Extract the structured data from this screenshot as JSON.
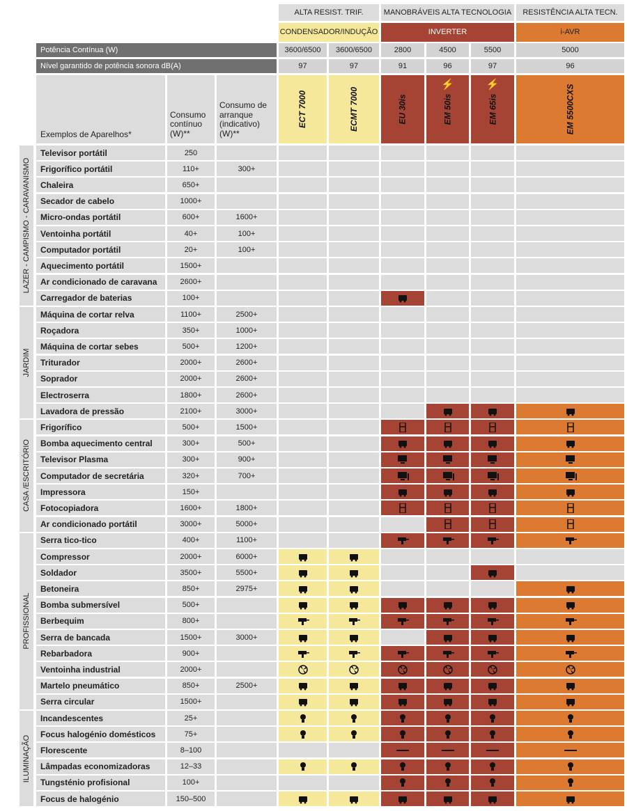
{
  "groups": [
    {
      "label": "ALTA RESIST. TRIF."
    },
    {
      "label": "MANOBRÁVEIS ALTA TECNOLOGIA"
    },
    {
      "label": "RESISTÊNCIA ALTA TECN."
    }
  ],
  "subgroups": [
    {
      "label": "CONDENSADOR/INDUÇÃO"
    },
    {
      "label": "INVERTER"
    },
    {
      "label": "i-AVR"
    }
  ],
  "power_row": {
    "label": "Potência Contínua (W)",
    "values": [
      "3600/6500",
      "3600/6500",
      "2800",
      "4500",
      "5500",
      "5000"
    ]
  },
  "sound_row": {
    "label": "Nível garantido de potência sonora dB(A)",
    "values": [
      "97",
      "97",
      "91",
      "96",
      "97",
      "96"
    ]
  },
  "column_headers": {
    "appliances": "Exemplos de Aparelhos*",
    "continuous": "Consumo contínuo (W)**",
    "startup": "Consumo de arranque (indicativo) (W)**"
  },
  "models": [
    "ECT 7000",
    "ECMT 7000",
    "EU 30is",
    "EM 50is",
    "EM 65is",
    "EM 5500CXS"
  ],
  "sections": [
    {
      "label": "LAZER - CAMPISMO - CARAVANISMO"
    },
    {
      "label": "JARDIM"
    },
    {
      "label": "CASA /ESCRITÓRIO"
    },
    {
      "label": "PROFISSIONAL"
    },
    {
      "label": "ILUMINAÇÃO"
    }
  ],
  "rows": [
    {
      "name": "Televisor portátil",
      "cont": "250",
      "start": "",
      "icon": "",
      "cols": "000000"
    },
    {
      "name": "Frigorífico portátil",
      "cont": "110+",
      "start": "300+",
      "icon": "",
      "cols": "000000"
    },
    {
      "name": "Chaleira",
      "cont": "650+",
      "start": "",
      "icon": "",
      "cols": "000000"
    },
    {
      "name": "Secador de cabelo",
      "cont": "1000+",
      "start": "",
      "icon": "",
      "cols": "000000"
    },
    {
      "name": "Micro-ondas portátil",
      "cont": "600+",
      "start": "1600+",
      "icon": "",
      "cols": "000000"
    },
    {
      "name": "Ventoinha portátil",
      "cont": "40+",
      "start": "100+",
      "icon": "",
      "cols": "000000"
    },
    {
      "name": "Computador portátil",
      "cont": "20+",
      "start": "100+",
      "icon": "",
      "cols": "000000"
    },
    {
      "name": "Aquecimento portátil",
      "cont": "1500+",
      "start": "",
      "icon": "",
      "cols": "000000"
    },
    {
      "name": "Ar condicionado de caravana",
      "cont": "2600+",
      "start": "",
      "icon": "",
      "cols": "000000"
    },
    {
      "name": "Carregador de baterias",
      "cont": "100+",
      "start": "",
      "icon": "battery-charger-icon",
      "cols": "001000"
    },
    {
      "name": "Máquina de cortar relva",
      "cont": "1100+",
      "start": "2500+",
      "icon": "",
      "cols": "000000"
    },
    {
      "name": "Roçadora",
      "cont": "350+",
      "start": "1000+",
      "icon": "",
      "cols": "000000"
    },
    {
      "name": "Máquina de cortar sebes",
      "cont": "500+",
      "start": "1200+",
      "icon": "",
      "cols": "000000"
    },
    {
      "name": "Triturador",
      "cont": "2000+",
      "start": "2600+",
      "icon": "",
      "cols": "000000"
    },
    {
      "name": "Soprador",
      "cont": "2000+",
      "start": "2600+",
      "icon": "",
      "cols": "000000"
    },
    {
      "name": "Electroserra",
      "cont": "1800+",
      "start": "2600+",
      "icon": "",
      "cols": "000000"
    },
    {
      "name": "Lavadora de pressão",
      "cont": "2100+",
      "start": "3000+",
      "icon": "pressure-washer-icon",
      "cols": "000111"
    },
    {
      "name": "Frigorífico",
      "cont": "500+",
      "start": "1500+",
      "icon": "fridge-icon",
      "cols": "001111"
    },
    {
      "name": "Bomba aquecimento central",
      "cont": "300+",
      "start": "500+",
      "icon": "pump-icon",
      "cols": "001111"
    },
    {
      "name": "Televisor Plasma",
      "cont": "300+",
      "start": "900+",
      "icon": "tv-icon",
      "cols": "001111"
    },
    {
      "name": "Computador de secretária",
      "cont": "320+",
      "start": "700+",
      "icon": "desktop-computer-icon",
      "cols": "001111"
    },
    {
      "name": "Impressora",
      "cont": "150+",
      "start": "",
      "icon": "printer-icon",
      "cols": "001111"
    },
    {
      "name": "Fotocopiadora",
      "cont": "1600+",
      "start": "1800+",
      "icon": "photocopier-icon",
      "cols": "001111"
    },
    {
      "name": "Ar condicionado portátil",
      "cont": "3000+",
      "start": "5000+",
      "icon": "air-conditioner-icon",
      "cols": "000111"
    },
    {
      "name": "Serra tico-tico",
      "cont": "400+",
      "start": "1100+",
      "icon": "jigsaw-icon",
      "cols": "001111"
    },
    {
      "name": "Compressor",
      "cont": "2000+",
      "start": "6000+",
      "icon": "compressor-icon",
      "cols": "110000"
    },
    {
      "name": "Soldador",
      "cont": "3500+",
      "start": "5500+",
      "icon": "welder-icon",
      "cols": "110010"
    },
    {
      "name": "Betoneira",
      "cont": "850+",
      "start": "2975+",
      "icon": "concrete-mixer-icon",
      "cols": "110001"
    },
    {
      "name": "Bomba submersível",
      "cont": "500+",
      "start": "",
      "icon": "submersible-pump-icon",
      "cols": "111111"
    },
    {
      "name": "Berbequim",
      "cont": "800+",
      "start": "",
      "icon": "drill-icon",
      "cols": "111111"
    },
    {
      "name": "Serra de bancada",
      "cont": "1500+",
      "start": "3000+",
      "icon": "table-saw-icon",
      "cols": "110111"
    },
    {
      "name": "Rebarbadora",
      "cont": "900+",
      "start": "",
      "icon": "angle-grinder-icon",
      "cols": "111111"
    },
    {
      "name": "Ventoinha industrial",
      "cont": "2000+",
      "start": "",
      "icon": "industrial-fan-icon",
      "cols": "111111"
    },
    {
      "name": "Martelo pneumático",
      "cont": "850+",
      "start": "2500+",
      "icon": "jackhammer-icon",
      "cols": "111111"
    },
    {
      "name": "Serra circular",
      "cont": "1500+",
      "start": "",
      "icon": "circular-saw-icon",
      "cols": "111111"
    },
    {
      "name": "Incandescentes",
      "cont": "25+",
      "start": "",
      "icon": "light-bulb-icon",
      "cols": "111111"
    },
    {
      "name": "Focus halogénio domésticos",
      "cont": "75+",
      "start": "",
      "icon": "halogen-spot-icon",
      "cols": "111111"
    },
    {
      "name": "Florescente",
      "cont": "8–100",
      "start": "",
      "icon": "fluorescent-tube-icon",
      "cols": "001111"
    },
    {
      "name": "Lâmpadas economizadoras",
      "cont": "12–33",
      "start": "",
      "icon": "energy-saving-bulb-icon",
      "cols": "111111"
    },
    {
      "name": "Tungsténio profisional",
      "cont": "100+",
      "start": "",
      "icon": "tungsten-lamp-icon",
      "cols": "001111"
    },
    {
      "name": "Focus de halogénio",
      "cont": "150–500",
      "start": "",
      "icon": "halogen-floodlight-icon",
      "cols": "111111"
    }
  ],
  "colors": {
    "yellow": "#f6e89a",
    "red": "#a54434",
    "orange": "#dd7a32",
    "gray": "#dcdcdc",
    "dark_bar": "#707070"
  }
}
